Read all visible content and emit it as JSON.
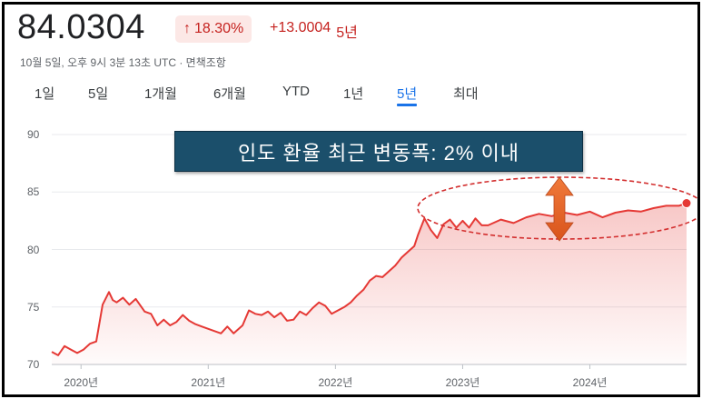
{
  "header": {
    "price": "84.0304",
    "change_arrow": "↑",
    "change_pct": "18.30%",
    "change_abs": "+13.0004",
    "change_period": "5년",
    "timestamp": "10월 5일, 오후 9시 3분 13초 UTC · 면책조항"
  },
  "tabs": [
    {
      "label": "1일",
      "active": false
    },
    {
      "label": "5일",
      "active": false
    },
    {
      "label": "1개월",
      "active": false
    },
    {
      "label": "6개월",
      "active": false
    },
    {
      "label": "YTD",
      "active": false
    },
    {
      "label": "1년",
      "active": false
    },
    {
      "label": "5년",
      "active": true
    },
    {
      "label": "최대",
      "active": false
    }
  ],
  "annotation": {
    "text": "인도 환율 최근 변동폭: 2% 이내"
  },
  "colors": {
    "line": "#e53935",
    "positive": "#c5221f",
    "accent": "#1a73e8",
    "ellipse": "#d32f2f",
    "arrow": "#e8662c",
    "callout_bg": "#1b4f6b"
  },
  "chart_data": {
    "type": "area",
    "title": "",
    "xlabel": "",
    "ylabel": "",
    "ylim": [
      70,
      90
    ],
    "yticks": [
      90,
      85,
      80,
      75,
      70
    ],
    "xlim": [
      2019.77,
      2024.76
    ],
    "xticks": [
      {
        "value": 2020.0,
        "label": "2020년"
      },
      {
        "value": 2021.0,
        "label": "2021년"
      },
      {
        "value": 2022.0,
        "label": "2022년"
      },
      {
        "value": 2023.0,
        "label": "2023년"
      },
      {
        "value": 2024.0,
        "label": "2024년"
      }
    ],
    "grid": true,
    "legend": "none",
    "series": [
      {
        "x": [
          2019.77,
          2019.82,
          2019.87,
          2019.92,
          2019.97,
          2020.02,
          2020.07,
          2020.12,
          2020.17,
          2020.22,
          2020.25,
          2020.28,
          2020.33,
          2020.38,
          2020.43,
          2020.5,
          2020.55,
          2020.6,
          2020.65,
          2020.7,
          2020.75,
          2020.8,
          2020.85,
          2020.9,
          2020.95,
          2021.0,
          2021.05,
          2021.1,
          2021.15,
          2021.2,
          2021.27,
          2021.32,
          2021.37,
          2021.42,
          2021.47,
          2021.52,
          2021.57,
          2021.62,
          2021.67,
          2021.72,
          2021.77,
          2021.82,
          2021.87,
          2021.92,
          2021.97,
          2022.02,
          2022.07,
          2022.12,
          2022.17,
          2022.22,
          2022.27,
          2022.32,
          2022.37,
          2022.42,
          2022.47,
          2022.52,
          2022.57,
          2022.62,
          2022.65,
          2022.7,
          2022.75,
          2022.8,
          2022.85,
          2022.9,
          2022.95,
          2023.0,
          2023.05,
          2023.1,
          2023.15,
          2023.2,
          2023.3,
          2023.4,
          2023.5,
          2023.6,
          2023.7,
          2023.8,
          2023.9,
          2024.0,
          2024.1,
          2024.2,
          2024.3,
          2024.4,
          2024.5,
          2024.6,
          2024.7,
          2024.76
        ],
        "values": [
          71.1,
          70.8,
          71.6,
          71.3,
          71.0,
          71.3,
          71.8,
          72.0,
          75.2,
          76.3,
          75.6,
          75.4,
          75.8,
          75.2,
          75.7,
          74.6,
          74.4,
          73.4,
          73.9,
          73.4,
          73.7,
          74.3,
          73.8,
          73.5,
          73.3,
          73.1,
          72.9,
          72.7,
          73.3,
          72.7,
          73.4,
          74.7,
          74.4,
          74.3,
          74.6,
          74.1,
          74.5,
          73.8,
          73.9,
          74.6,
          74.3,
          74.9,
          75.4,
          75.1,
          74.4,
          74.7,
          75.0,
          75.4,
          76.0,
          76.5,
          77.3,
          77.7,
          77.6,
          78.1,
          78.6,
          79.3,
          79.8,
          80.3,
          81.3,
          82.7,
          81.7,
          81.0,
          82.2,
          82.6,
          81.9,
          82.5,
          81.9,
          82.7,
          82.1,
          82.1,
          82.6,
          82.3,
          82.8,
          83.1,
          82.9,
          83.2,
          83.0,
          83.3,
          82.8,
          83.2,
          83.4,
          83.3,
          83.6,
          83.8,
          83.8,
          84.03
        ]
      }
    ]
  }
}
